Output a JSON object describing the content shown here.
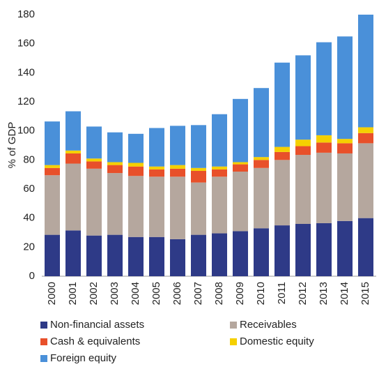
{
  "chart_data": {
    "type": "stacked_bar",
    "y_label": "% of GDP",
    "categories": [
      "2000",
      "2001",
      "2002",
      "2003",
      "2004",
      "2005",
      "2006",
      "2007",
      "2008",
      "2009",
      "2010",
      "2011",
      "2012",
      "2013",
      "2014",
      "2015"
    ],
    "series": [
      {
        "name": "Non-financial assets",
        "color": "#2e3a87",
        "values": [
          28.5,
          31.5,
          28,
          28.5,
          27,
          27,
          25.5,
          28.5,
          29.5,
          31,
          33,
          35,
          36,
          36.5,
          38,
          40
        ]
      },
      {
        "name": "Receivables",
        "color": "#b5a79e",
        "values": [
          41,
          46,
          46,
          42.5,
          42,
          41.5,
          43,
          36,
          39,
          41,
          41.5,
          45,
          47.5,
          48.5,
          46.5,
          51.5
        ]
      },
      {
        "name": "Cash & equivalents",
        "color": "#e8502a",
        "values": [
          5,
          7,
          5,
          5.5,
          6.5,
          5,
          5.5,
          8,
          5,
          5,
          5.5,
          5.5,
          6,
          7,
          7,
          7
        ]
      },
      {
        "name": "Domestic equity",
        "color": "#f5d000",
        "values": [
          2,
          2,
          2,
          2,
          2.5,
          2,
          2.5,
          2,
          2,
          1.5,
          2,
          3.5,
          4.5,
          5,
          3,
          4
        ]
      },
      {
        "name": "Foreign equity",
        "color": "#4a90d9",
        "values": [
          30,
          27,
          22,
          20.5,
          20,
          26.5,
          27,
          29.5,
          36,
          43.5,
          47.5,
          58,
          58,
          64,
          70.5,
          77.5
        ]
      }
    ],
    "ylim": [
      0,
      180
    ],
    "yticks": [
      0,
      20,
      40,
      60,
      80,
      100,
      120,
      140,
      160,
      180
    ],
    "grid": false
  }
}
